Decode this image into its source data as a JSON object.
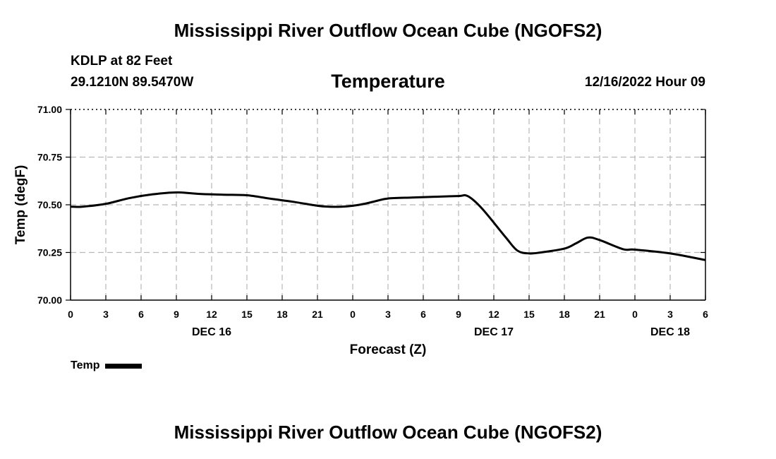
{
  "header": {
    "title": "Mississippi River Outflow Ocean Cube (NGOFS2)",
    "station": "KDLP at 82 Feet",
    "coords": "29.1210N  89.5470W",
    "chart_title": "Temperature",
    "datetime": "12/16/2022 Hour 09"
  },
  "footer": {
    "title": "Mississippi River Outflow Ocean Cube (NGOFS2)"
  },
  "legend": {
    "label": "Temp",
    "color": "#000000"
  },
  "chart_data": {
    "type": "line",
    "title": "Temperature",
    "xlabel": "Forecast (Z)",
    "ylabel": "Temp (degF)",
    "ylim": [
      70.0,
      71.0
    ],
    "xlim": [
      0,
      54
    ],
    "y_ticks": [
      70.0,
      70.25,
      70.5,
      70.75,
      71.0
    ],
    "y_tick_labels": [
      "70.00",
      "70.25",
      "70.50",
      "70.75",
      "71.00"
    ],
    "x_ticks": [
      0,
      3,
      6,
      9,
      12,
      15,
      18,
      21,
      24,
      27,
      30,
      33,
      36,
      39,
      42,
      45,
      48,
      51,
      54
    ],
    "x_tick_labels": [
      "0",
      "3",
      "6",
      "9",
      "12",
      "15",
      "18",
      "21",
      "0",
      "3",
      "6",
      "9",
      "12",
      "15",
      "18",
      "21",
      "0",
      "3",
      "6"
    ],
    "day_labels": [
      {
        "x": 12,
        "label": "DEC 16"
      },
      {
        "x": 36,
        "label": "DEC 17"
      },
      {
        "x": 51,
        "label": "DEC 18"
      }
    ],
    "grid": true,
    "series": [
      {
        "name": "Temp",
        "color": "#000000",
        "x": [
          0,
          1,
          3,
          5,
          7,
          9,
          11,
          13,
          15,
          17,
          19,
          21,
          22,
          23,
          24,
          25,
          26,
          27,
          29,
          31,
          33,
          33.8,
          35,
          37,
          38,
          39,
          40,
          42,
          43,
          44,
          45,
          47,
          48,
          51,
          54
        ],
        "y": [
          70.49,
          70.49,
          70.505,
          70.535,
          70.555,
          70.565,
          70.557,
          70.553,
          70.55,
          70.532,
          70.515,
          70.495,
          70.49,
          70.49,
          70.495,
          70.505,
          70.52,
          70.533,
          70.538,
          70.542,
          70.546,
          70.545,
          70.48,
          70.33,
          70.26,
          70.245,
          70.25,
          70.27,
          70.298,
          70.328,
          70.315,
          70.267,
          70.265,
          70.245,
          70.21
        ]
      }
    ]
  }
}
